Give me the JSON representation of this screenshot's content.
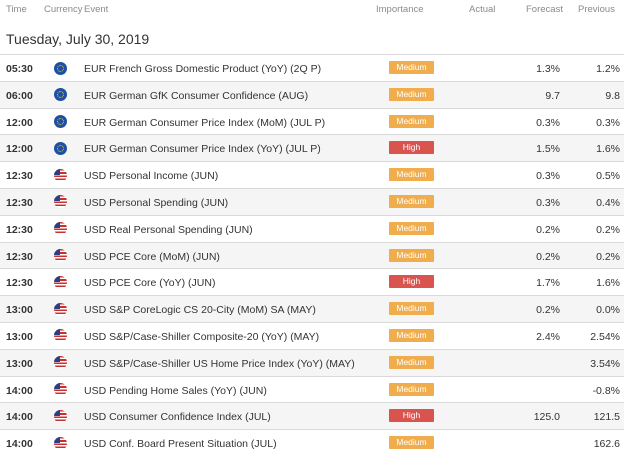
{
  "header": {
    "time": "Time",
    "currency": "Currency",
    "event": "Event",
    "importance": "Importance",
    "actual": "Actual",
    "forecast": "Forecast",
    "previous": "Previous"
  },
  "date": "Tuesday, July 30, 2019",
  "colors": {
    "medium": "#f0ad4e",
    "high": "#d9534f"
  },
  "rows": [
    {
      "time": "05:30",
      "currency": "eu",
      "flag_icon": "eu-flag-icon",
      "event": "EUR French Gross Domestic Product (YoY) (2Q P)",
      "importance": "Medium",
      "actual": "",
      "forecast": "1.3%",
      "previous": "1.2%"
    },
    {
      "time": "06:00",
      "currency": "eu",
      "flag_icon": "eu-flag-icon",
      "event": "EUR German GfK Consumer Confidence (AUG)",
      "importance": "Medium",
      "actual": "",
      "forecast": "9.7",
      "previous": "9.8"
    },
    {
      "time": "12:00",
      "currency": "eu",
      "flag_icon": "eu-flag-icon",
      "event": "EUR German Consumer Price Index (MoM) (JUL P)",
      "importance": "Medium",
      "actual": "",
      "forecast": "0.3%",
      "previous": "0.3%"
    },
    {
      "time": "12:00",
      "currency": "eu",
      "flag_icon": "eu-flag-icon",
      "event": "EUR German Consumer Price Index (YoY) (JUL P)",
      "importance": "High",
      "actual": "",
      "forecast": "1.5%",
      "previous": "1.6%"
    },
    {
      "time": "12:30",
      "currency": "us",
      "flag_icon": "us-flag-icon",
      "event": "USD Personal Income (JUN)",
      "importance": "Medium",
      "actual": "",
      "forecast": "0.3%",
      "previous": "0.5%"
    },
    {
      "time": "12:30",
      "currency": "us",
      "flag_icon": "us-flag-icon",
      "event": "USD Personal Spending (JUN)",
      "importance": "Medium",
      "actual": "",
      "forecast": "0.3%",
      "previous": "0.4%"
    },
    {
      "time": "12:30",
      "currency": "us",
      "flag_icon": "us-flag-icon",
      "event": "USD Real Personal Spending (JUN)",
      "importance": "Medium",
      "actual": "",
      "forecast": "0.2%",
      "previous": "0.2%"
    },
    {
      "time": "12:30",
      "currency": "us",
      "flag_icon": "us-flag-icon",
      "event": "USD PCE Core (MoM) (JUN)",
      "importance": "Medium",
      "actual": "",
      "forecast": "0.2%",
      "previous": "0.2%"
    },
    {
      "time": "12:30",
      "currency": "us",
      "flag_icon": "us-flag-icon",
      "event": "USD PCE Core (YoY) (JUN)",
      "importance": "High",
      "actual": "",
      "forecast": "1.7%",
      "previous": "1.6%"
    },
    {
      "time": "13:00",
      "currency": "us",
      "flag_icon": "us-flag-icon",
      "event": "USD S&P CoreLogic CS 20-City (MoM) SA (MAY)",
      "importance": "Medium",
      "actual": "",
      "forecast": "0.2%",
      "previous": "0.0%"
    },
    {
      "time": "13:00",
      "currency": "us",
      "flag_icon": "us-flag-icon",
      "event": "USD S&P/Case-Shiller Composite-20 (YoY) (MAY)",
      "importance": "Medium",
      "actual": "",
      "forecast": "2.4%",
      "previous": "2.54%"
    },
    {
      "time": "13:00",
      "currency": "us",
      "flag_icon": "us-flag-icon",
      "event": "USD S&P/Case-Shiller US Home Price Index (YoY) (MAY)",
      "importance": "Medium",
      "actual": "",
      "forecast": "",
      "previous": "3.54%"
    },
    {
      "time": "14:00",
      "currency": "us",
      "flag_icon": "us-flag-icon",
      "event": "USD Pending Home Sales (YoY) (JUN)",
      "importance": "Medium",
      "actual": "",
      "forecast": "",
      "previous": "-0.8%"
    },
    {
      "time": "14:00",
      "currency": "us",
      "flag_icon": "us-flag-icon",
      "event": "USD Consumer Confidence Index (JUL)",
      "importance": "High",
      "actual": "",
      "forecast": "125.0",
      "previous": "121.5"
    },
    {
      "time": "14:00",
      "currency": "us",
      "flag_icon": "us-flag-icon",
      "event": "USD Conf. Board Present Situation (JUL)",
      "importance": "Medium",
      "actual": "",
      "forecast": "",
      "previous": "162.6"
    }
  ]
}
